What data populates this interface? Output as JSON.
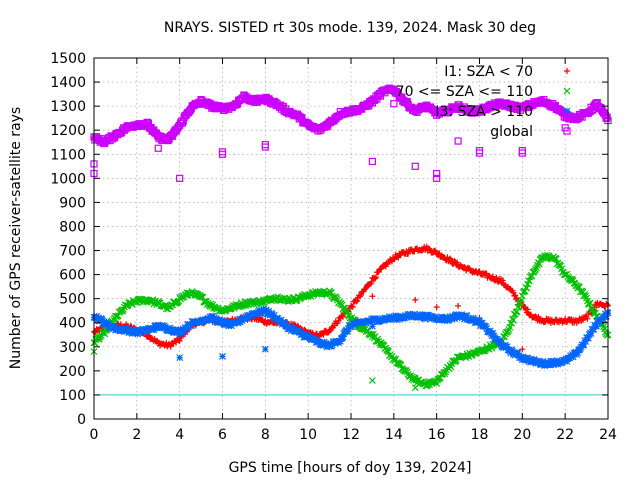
{
  "chart_data": {
    "type": "scatter",
    "title": "NRAYS. SISTED rt 30s mode. 139, 2024. Mask 30 deg",
    "xlabel": "GPS time [hours of doy 139, 2024]",
    "ylabel": "Number of GPS receiver-satellite rays",
    "xlim": [
      0,
      24
    ],
    "ylim": [
      0,
      1500
    ],
    "xticks": [
      0,
      2,
      4,
      6,
      8,
      10,
      12,
      14,
      16,
      18,
      20,
      22,
      24
    ],
    "yticks": [
      0,
      100,
      200,
      300,
      400,
      500,
      600,
      700,
      800,
      900,
      1000,
      1100,
      1200,
      1300,
      1400,
      1500
    ],
    "grid": true,
    "legend_position": "top-right",
    "reference_line": {
      "y": 100,
      "color": "#33cccc"
    },
    "series": [
      {
        "name": "I1: SZA < 70",
        "marker": "+",
        "color": "#ff0000",
        "x": [
          0,
          0.5,
          1,
          1.5,
          2,
          2.5,
          3,
          3.5,
          4,
          4.5,
          5,
          5.5,
          6,
          6.5,
          7,
          7.5,
          8,
          8.5,
          9,
          9.5,
          10,
          10.5,
          11,
          11.5,
          12,
          12.5,
          13,
          13.5,
          14,
          14.5,
          15,
          15.5,
          16,
          16.5,
          17,
          17.5,
          18,
          18.5,
          19,
          19.5,
          20,
          20.5,
          21,
          21.5,
          22,
          22.5,
          23,
          23.5,
          24
        ],
        "y": [
          360,
          380,
          390,
          385,
          370,
          350,
          315,
          305,
          330,
          390,
          405,
          410,
          400,
          410,
          420,
          420,
          405,
          400,
          395,
          380,
          355,
          345,
          370,
          420,
          465,
          520,
          580,
          630,
          670,
          690,
          705,
          710,
          690,
          665,
          640,
          620,
          605,
          590,
          575,
          530,
          470,
          425,
          410,
          405,
          410,
          405,
          420,
          480,
          470
        ],
        "outliers": [
          [
            13,
            510
          ],
          [
            15,
            495
          ],
          [
            16,
            465
          ],
          [
            17,
            470
          ],
          [
            18,
            420
          ],
          [
            20,
            290
          ]
        ]
      },
      {
        "name": "70 <= SZA <= 110",
        "marker": "x",
        "color": "#00c000",
        "x": [
          0,
          0.5,
          1,
          1.5,
          2,
          2.5,
          3,
          3.5,
          4,
          4.5,
          5,
          5.5,
          6,
          6.5,
          7,
          7.5,
          8,
          8.5,
          9,
          9.5,
          10,
          10.5,
          11,
          11.5,
          12,
          12.5,
          13,
          13.5,
          14,
          14.5,
          15,
          15.5,
          16,
          16.5,
          17,
          17.5,
          18,
          18.5,
          19,
          19.5,
          20,
          20.5,
          21,
          21.5,
          22,
          22.5,
          23,
          23.5,
          24
        ],
        "y": [
          320,
          360,
          420,
          470,
          490,
          495,
          480,
          460,
          500,
          525,
          505,
          470,
          450,
          465,
          480,
          485,
          490,
          505,
          495,
          500,
          515,
          525,
          525,
          480,
          420,
          380,
          350,
          300,
          250,
          200,
          160,
          145,
          155,
          210,
          255,
          265,
          280,
          300,
          315,
          400,
          510,
          610,
          675,
          670,
          600,
          560,
          500,
          420,
          350
        ],
        "outliers": [
          [
            0,
            280
          ],
          [
            13,
            160
          ],
          [
            15,
            130
          ]
        ]
      },
      {
        "name": "I3: SZA > 110",
        "marker": "*",
        "color": "#0066ff",
        "x": [
          0,
          0.5,
          1,
          1.5,
          2,
          2.5,
          3,
          3.5,
          4,
          4.5,
          5,
          5.5,
          6,
          6.5,
          7,
          7.5,
          8,
          8.5,
          9,
          9.5,
          10,
          10.5,
          11,
          11.5,
          12,
          12.5,
          13,
          13.5,
          14,
          14.5,
          15,
          15.5,
          16,
          16.5,
          17,
          17.5,
          18,
          18.5,
          19,
          19.5,
          20,
          20.5,
          21,
          21.5,
          22,
          22.5,
          23,
          23.5,
          24
        ],
        "y": [
          430,
          400,
          375,
          370,
          360,
          370,
          385,
          375,
          360,
          395,
          410,
          420,
          400,
          390,
          420,
          440,
          450,
          420,
          385,
          360,
          340,
          315,
          305,
          330,
          390,
          400,
          410,
          415,
          420,
          425,
          430,
          425,
          420,
          415,
          430,
          420,
          400,
          360,
          310,
          280,
          255,
          240,
          230,
          235,
          240,
          270,
          330,
          400,
          440
        ],
        "outliers": [
          [
            4,
            255
          ],
          [
            6,
            260
          ],
          [
            8,
            290
          ],
          [
            13,
            385
          ]
        ]
      },
      {
        "name": "global",
        "marker": "square",
        "color": "#cc00ff",
        "x": [
          0,
          0.5,
          1,
          1.5,
          2,
          2.5,
          3,
          3.5,
          4,
          4.5,
          5,
          5.5,
          6,
          6.5,
          7,
          7.5,
          8,
          8.5,
          9,
          9.5,
          10,
          10.5,
          11,
          11.5,
          12,
          12.5,
          13,
          13.5,
          14,
          14.5,
          15,
          15.5,
          16,
          16.5,
          17,
          17.5,
          18,
          18.5,
          19,
          19.5,
          20,
          20.5,
          21,
          21.5,
          22,
          22.5,
          23,
          23.5,
          24
        ],
        "y": [
          1170,
          1150,
          1180,
          1210,
          1225,
          1225,
          1170,
          1160,
          1220,
          1290,
          1320,
          1300,
          1290,
          1300,
          1340,
          1320,
          1330,
          1310,
          1280,
          1260,
          1220,
          1200,
          1230,
          1270,
          1280,
          1290,
          1320,
          1360,
          1370,
          1320,
          1280,
          1300,
          1270,
          1280,
          1300,
          1280,
          1280,
          1300,
          1310,
          1300,
          1290,
          1310,
          1320,
          1300,
          1260,
          1250,
          1270,
          1310,
          1240
        ],
        "outliers": [
          [
            0,
            1060
          ],
          [
            0,
            1020
          ],
          [
            3,
            1125
          ],
          [
            4,
            1000
          ],
          [
            6,
            1110
          ],
          [
            6,
            1100
          ],
          [
            8,
            1140
          ],
          [
            8,
            1130
          ],
          [
            13,
            1070
          ],
          [
            14,
            1310
          ],
          [
            15,
            1050
          ],
          [
            16,
            1020
          ],
          [
            16,
            1000
          ],
          [
            17,
            1155
          ],
          [
            18,
            1115
          ],
          [
            18,
            1105
          ],
          [
            20,
            1115
          ],
          [
            20,
            1105
          ],
          [
            22,
            1210
          ]
        ]
      }
    ],
    "cyan_line_label": ""
  }
}
